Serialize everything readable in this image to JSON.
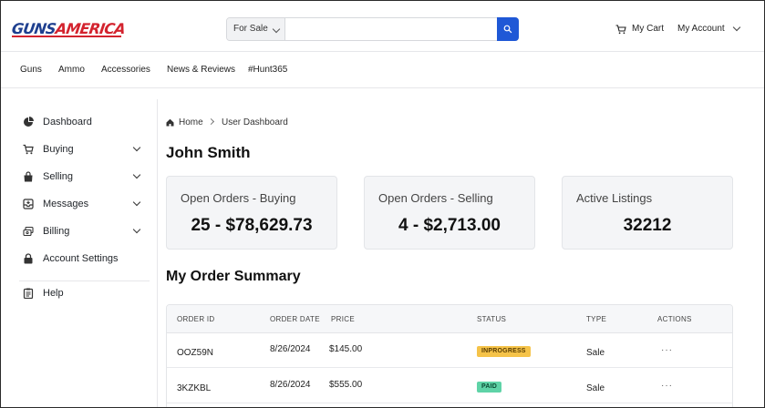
{
  "header": {
    "logo_part1": "GUNS",
    "logo_part2": "AMERICA",
    "search": {
      "category": "For Sale",
      "value": "",
      "placeholder": ""
    },
    "cart_label": "My Cart",
    "account_label": "My Account"
  },
  "topnav": {
    "items": [
      "Guns",
      "Ammo",
      "Accessories",
      "News & Reviews",
      "#Hunt365"
    ]
  },
  "sidebar": {
    "items": [
      {
        "label": "Dashboard",
        "icon": "pie-chart-icon"
      },
      {
        "label": "Buying",
        "icon": "cart-icon"
      },
      {
        "label": "Selling",
        "icon": "shopping-bag-icon"
      },
      {
        "label": "Messages",
        "icon": "inbox-icon"
      },
      {
        "label": "Billing",
        "icon": "billing-icon"
      },
      {
        "label": "Account Settings",
        "icon": "lock-icon"
      },
      {
        "label": "Help",
        "icon": "clipboard-icon"
      }
    ]
  },
  "breadcrumb": {
    "home": "Home",
    "current": "User Dashboard"
  },
  "main": {
    "title": "John Smith",
    "cards": [
      {
        "title": "Open Orders - Buying",
        "value": "25 - $78,629.73"
      },
      {
        "title": "Open Orders - Selling",
        "value": "4 - $2,713.00"
      },
      {
        "title": "Active Listings",
        "value": "32212"
      }
    ],
    "order_summary_title": "My Order Summary",
    "table": {
      "columns": [
        "ORDER ID",
        "ORDER DATE",
        "PRICE",
        "STATUS",
        "TYPE",
        "ACTIONS"
      ],
      "rows": [
        {
          "order_id": "OOZ59N",
          "date": "8/26/2024",
          "price": "$145.00",
          "status": "INPROGRESS",
          "type": "Sale",
          "actions": "···"
        },
        {
          "order_id": "3KZKBL",
          "date": "8/26/2024",
          "price": "$555.00",
          "status": "PAID",
          "type": "Sale",
          "actions": "···"
        }
      ]
    }
  },
  "colors": {
    "accent": "#1f58d6",
    "logo_blue": "#1e3f8f",
    "logo_red": "#d3232e",
    "status_inprogress": "#f5c349",
    "status_paid": "#5fd3a7"
  }
}
